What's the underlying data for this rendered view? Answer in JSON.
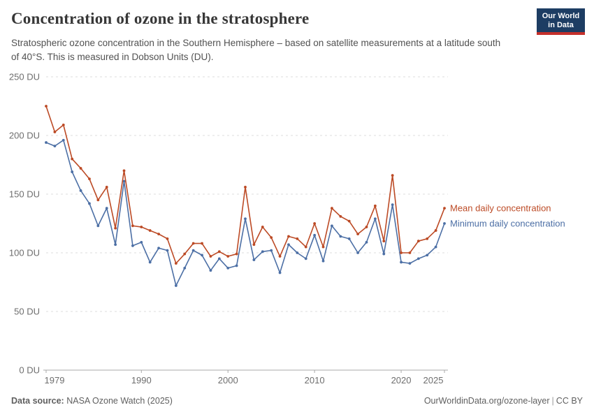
{
  "header": {
    "title": "Concentration of ozone in the stratosphere",
    "subtitle": "Stratospheric ozone concentration in the Southern Hemisphere – based on satellite measurements at a latitude south of 40°S. This is measured in Dobson Units (DU)."
  },
  "logo": {
    "line1": "Our World",
    "line2": "in Data",
    "bg_color": "#1D3D63",
    "bar_color": "#C5302B"
  },
  "chart_data": {
    "type": "line",
    "title": "Concentration of ozone in the stratosphere",
    "x": [
      1979,
      1980,
      1981,
      1982,
      1983,
      1984,
      1985,
      1986,
      1987,
      1988,
      1989,
      1990,
      1991,
      1992,
      1993,
      1994,
      1995,
      1996,
      1997,
      1998,
      1999,
      2000,
      2001,
      2002,
      2003,
      2004,
      2005,
      2006,
      2007,
      2008,
      2009,
      2010,
      2011,
      2012,
      2013,
      2014,
      2015,
      2016,
      2017,
      2018,
      2019,
      2020,
      2021,
      2022,
      2023,
      2024,
      2025
    ],
    "series": [
      {
        "name": "Mean daily concentration",
        "color": "#BC4A25",
        "values": [
          225,
          203,
          209,
          180,
          172,
          163,
          145,
          156,
          121,
          170,
          123,
          122,
          119,
          116,
          112,
          91,
          99,
          108,
          108,
          97,
          101,
          97,
          99,
          156,
          107,
          122,
          113,
          97,
          114,
          112,
          105,
          125,
          105,
          138,
          131,
          127,
          116,
          122,
          140,
          110,
          166,
          100,
          100,
          110,
          112,
          119,
          138
        ]
      },
      {
        "name": "Minimum daily concentration",
        "color": "#4C6FA5",
        "values": [
          194,
          191,
          196,
          169,
          153,
          142,
          123,
          138,
          107,
          161,
          106,
          109,
          92,
          104,
          102,
          72,
          87,
          102,
          98,
          85,
          95,
          87,
          89,
          129,
          94,
          101,
          102,
          83,
          107,
          100,
          95,
          115,
          93,
          123,
          114,
          112,
          100,
          109,
          129,
          99,
          141,
          92,
          91,
          95,
          98,
          105,
          125
        ]
      }
    ],
    "unit": "DU",
    "ylabel_suffix": " DU",
    "ylim": [
      0,
      250
    ],
    "xlim": [
      1979,
      2025
    ],
    "yticks": [
      0,
      50,
      100,
      150,
      200,
      250
    ],
    "xticks": [
      1979,
      1990,
      2000,
      2010,
      2020,
      2025
    ],
    "grid": "dashed-horizontal",
    "legend_position": "right-of-line-ends",
    "axis_color": "#a9a9a9",
    "grid_color": "#dcdcdc",
    "tick_label_color": "#6e6e6e"
  },
  "footer": {
    "datasource_label": "Data source:",
    "datasource_value": " NASA Ozone Watch (2025)",
    "link": "OurWorldinData.org/ozone-layer",
    "divider": "|",
    "license": "CC BY"
  }
}
